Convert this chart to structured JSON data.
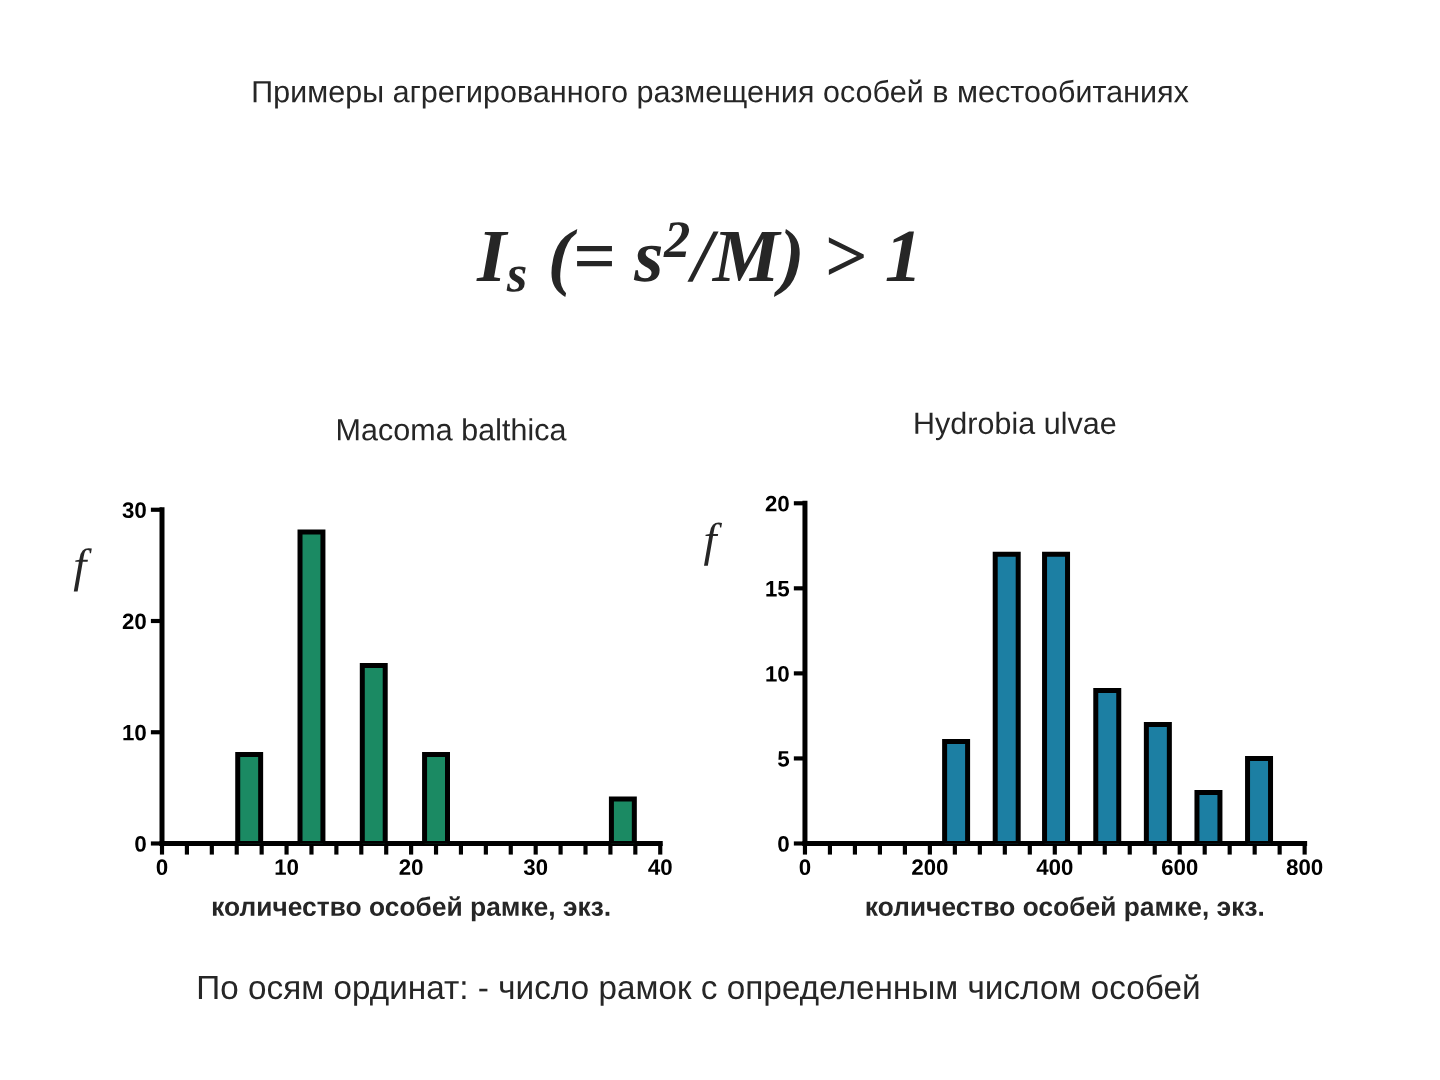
{
  "chart_data": [
    {
      "type": "other",
      "title": "Примеры агрегированного размещения особей в местообитаниях",
      "annotations": [
        "I$_{s}$ (= s$^{2}$/M) > 1",
        "По осям ординат: - число рамок с определенным числом особей"
      ]
    },
    {
      "type": "bar",
      "title": "Macoma balthica",
      "xlabel": "количество особей рамке, экз.",
      "ylabel": "f",
      "x": [
        7,
        12,
        17,
        22,
        37
      ],
      "values": [
        8,
        28,
        16,
        8,
        4
      ],
      "color": "#1b8a63",
      "xlim": [
        0,
        40
      ],
      "xticks": [
        0,
        {
          "value": 2,
          "label": null
        },
        {
          "value": 4,
          "label": null
        },
        {
          "value": 6,
          "label": null
        },
        {
          "value": 8,
          "label": null
        },
        10,
        {
          "value": 12,
          "label": null
        },
        {
          "value": 14,
          "label": null
        },
        {
          "value": 16,
          "label": null
        },
        {
          "value": 18,
          "label": null
        },
        20,
        {
          "value": 22,
          "label": null
        },
        {
          "value": 24,
          "label": null
        },
        {
          "value": 26,
          "label": null
        },
        {
          "value": 28,
          "label": null
        },
        30,
        {
          "value": 32,
          "label": null
        },
        {
          "value": 34,
          "label": null
        },
        {
          "value": 36,
          "label": null
        },
        {
          "value": 38,
          "label": null
        },
        40
      ],
      "ylim": [
        0,
        30
      ],
      "yticks": [
        0,
        10,
        20,
        30
      ]
    },
    {
      "type": "bar",
      "title": "Hydrobia ulvae",
      "xlabel": "количество особей рамке, экз.",
      "ylabel": "f",
      "x": [
        242,
        323,
        402,
        484,
        565,
        646,
        727
      ],
      "values": [
        6,
        17,
        17,
        9,
        7,
        3,
        5
      ],
      "color": "#1c7fa3",
      "xlim": [
        0,
        800
      ],
      "xticks": [
        0,
        {
          "value": 40,
          "label": null
        },
        {
          "value": 80,
          "label": null
        },
        {
          "value": 120,
          "label": null
        },
        {
          "value": 160,
          "label": null
        },
        200,
        {
          "value": 240,
          "label": null
        },
        {
          "value": 280,
          "label": null
        },
        {
          "value": 320,
          "label": null
        },
        {
          "value": 360,
          "label": null
        },
        400,
        {
          "value": 440,
          "label": null
        },
        {
          "value": 480,
          "label": null
        },
        {
          "value": 520,
          "label": null
        },
        {
          "value": 560,
          "label": null
        },
        600,
        {
          "value": 640,
          "label": null
        },
        {
          "value": 680,
          "label": null
        },
        {
          "value": 720,
          "label": null
        },
        {
          "value": 760,
          "label": null
        },
        800
      ],
      "ylim": [
        0,
        20
      ],
      "yticks": [
        0,
        5,
        10,
        15,
        20
      ]
    }
  ]
}
